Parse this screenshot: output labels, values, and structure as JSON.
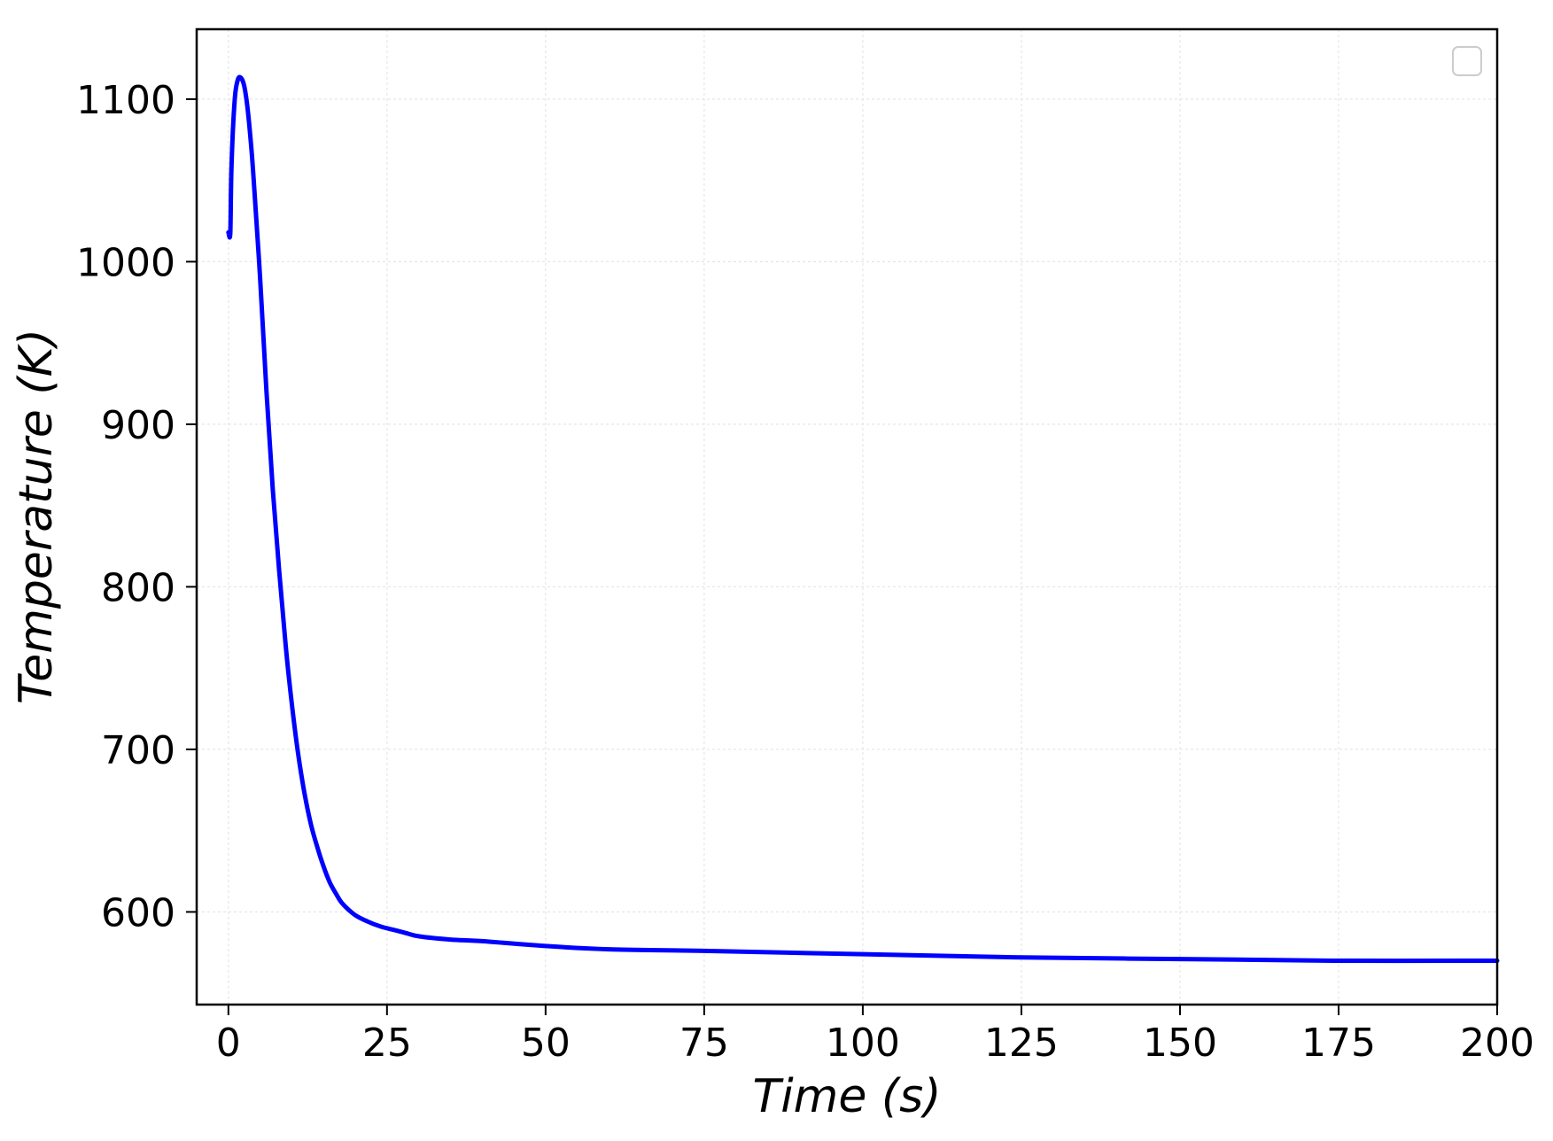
{
  "chart_data": {
    "type": "line",
    "title": "",
    "xlabel": "Time (s)",
    "ylabel": "Temperature (K)",
    "xlim": [
      -5,
      200
    ],
    "ylim": [
      543,
      1143
    ],
    "x_ticks": [
      0,
      25,
      50,
      75,
      100,
      125,
      150,
      175,
      200
    ],
    "y_ticks": [
      600,
      700,
      800,
      900,
      1000,
      1100
    ],
    "grid": true,
    "legend": "top-right (empty)",
    "series": [
      {
        "color": "#0000ff",
        "x": [
          0,
          0.3,
          0.5,
          1,
          1.5,
          2,
          2.5,
          3,
          3.5,
          4,
          5,
          6,
          7,
          8,
          9,
          10,
          11,
          12,
          13,
          14,
          15,
          16,
          17,
          18,
          20,
          22,
          24,
          26,
          28,
          30,
          35,
          40,
          50,
          60,
          75,
          100,
          125,
          150,
          175,
          200
        ],
        "y": [
          1018,
          1018,
          1060,
          1100,
          1112,
          1113,
          1108,
          1095,
          1075,
          1050,
          990,
          920,
          860,
          810,
          765,
          728,
          697,
          673,
          654,
          640,
          628,
          618,
          611,
          605,
          598,
          594,
          591,
          589,
          587,
          585,
          583,
          582,
          579,
          577,
          576,
          574,
          572,
          571,
          570,
          570
        ]
      }
    ]
  }
}
